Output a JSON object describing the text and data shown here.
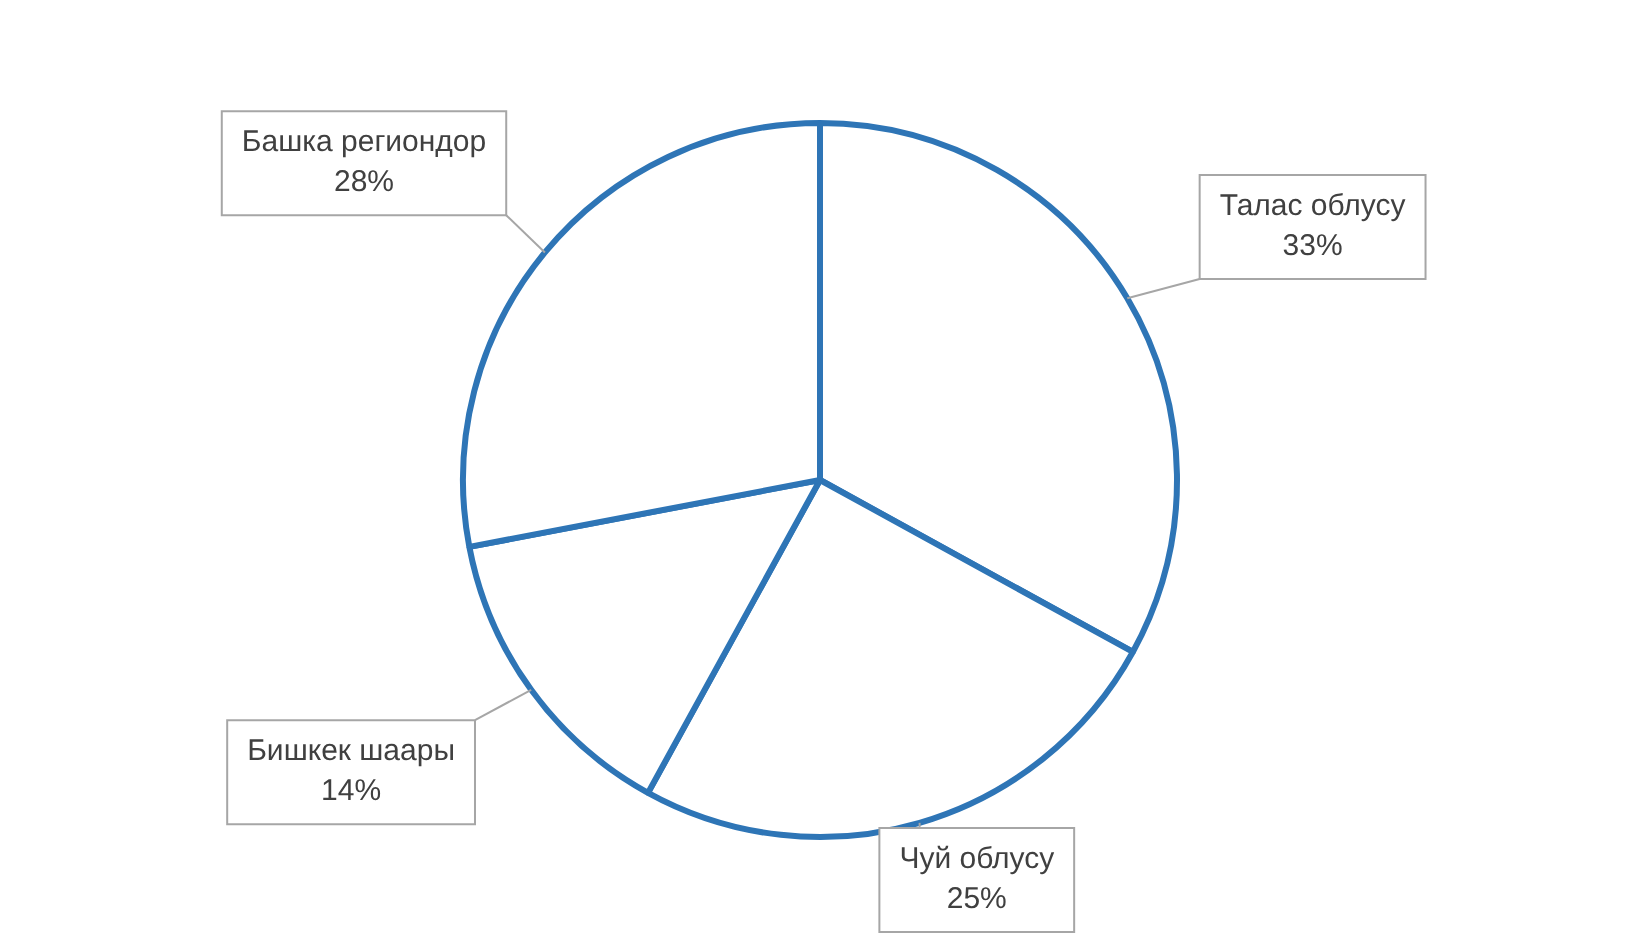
{
  "chart_data": {
    "type": "pie",
    "categories": [
      "Талас облусу",
      "Чуй облусу",
      "Бишкек шаары",
      "Башка региондор"
    ],
    "values": [
      33,
      25,
      14,
      28
    ],
    "value_labels": [
      "33%",
      "25%",
      "14%",
      "28%"
    ],
    "colors": [
      "#ffffff",
      "#ffffff",
      "#ffffff",
      "#ffffff"
    ],
    "legend": false
  }
}
